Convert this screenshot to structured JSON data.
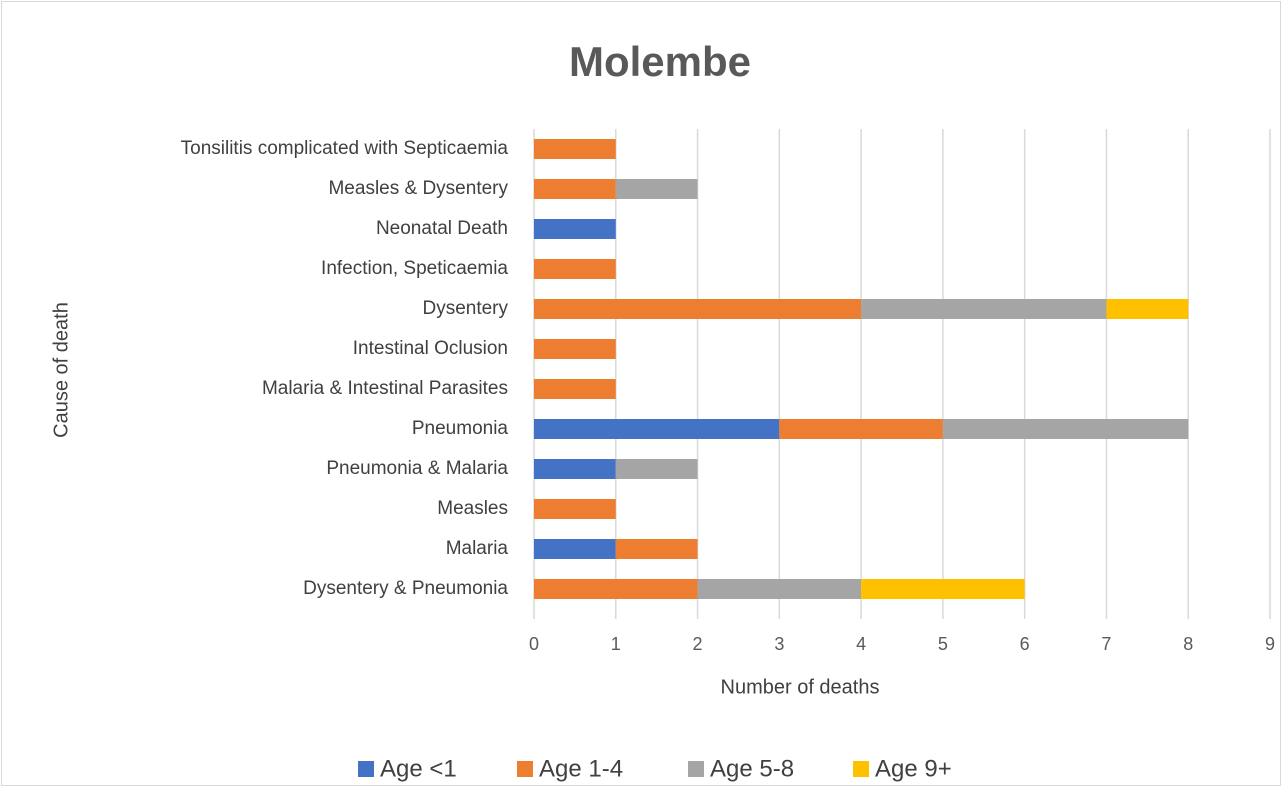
{
  "chart_data": {
    "type": "bar",
    "orientation": "horizontal",
    "stacked": true,
    "title": "Molembe",
    "x_label": "Number of deaths",
    "y_label": "Cause of death",
    "categories": [
      "Tonsilitis  complicated with Septicaemia",
      "Measles & Dysentery",
      "Neonatal Death",
      "Infection, Speticaemia",
      "Dysentery",
      "Intestinal Oclusion",
      "Malaria & Intestinal Parasites",
      "Pneumonia",
      "Pneumonia & Malaria",
      "Measles",
      "Malaria",
      "Dysentery & Pneumonia"
    ],
    "series": [
      {
        "name": "Age <1",
        "color": "#4472c4",
        "values": [
          0,
          0,
          1,
          0,
          0,
          0,
          0,
          3,
          1,
          0,
          1,
          0
        ]
      },
      {
        "name": "Age 1-4",
        "color": "#ed7d31",
        "values": [
          1,
          1,
          0,
          1,
          4,
          1,
          1,
          2,
          0,
          1,
          1,
          2
        ]
      },
      {
        "name": "Age 5-8",
        "color": "#a5a5a5",
        "values": [
          0,
          1,
          0,
          0,
          3,
          0,
          0,
          3,
          1,
          0,
          0,
          2
        ]
      },
      {
        "name": "Age 9+",
        "color": "#ffc000",
        "values": [
          0,
          0,
          0,
          0,
          1,
          0,
          0,
          0,
          0,
          0,
          0,
          2
        ]
      }
    ],
    "xlim": [
      0,
      9
    ],
    "xticks": [
      0,
      1,
      2,
      3,
      4,
      5,
      6,
      7,
      8,
      9
    ],
    "grid": true,
    "legend": "bottom"
  }
}
